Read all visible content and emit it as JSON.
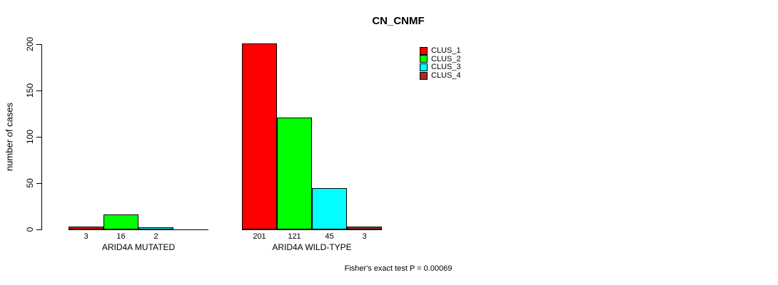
{
  "title": "CN_CNMF",
  "ylabel": "number of cases",
  "footer": "Fisher's exact test P = 0.00069",
  "chart_data": {
    "type": "bar",
    "title": "CN_CNMF",
    "xlabel": "",
    "ylabel": "number of cases",
    "ylim": [
      0,
      200
    ],
    "yticks": [
      0,
      50,
      100,
      150,
      200
    ],
    "grid": false,
    "legend_position": "top-right",
    "categories": [
      "ARID4A MUTATED",
      "ARID4A WILD-TYPE"
    ],
    "series": [
      {
        "name": "CLUS_1",
        "color": "#FF0000",
        "values": [
          3,
          201
        ]
      },
      {
        "name": "CLUS_2",
        "color": "#00FF00",
        "values": [
          16,
          121
        ]
      },
      {
        "name": "CLUS_3",
        "color": "#00FFFF",
        "values": [
          2,
          45
        ]
      },
      {
        "name": "CLUS_4",
        "color": "#A52A2A",
        "values": [
          0,
          3
        ]
      }
    ],
    "bar_value_labels_shown": [
      "3",
      "16",
      "2",
      "",
      "201",
      "121",
      "45",
      "3"
    ],
    "annotation": "Fisher's exact test P = 0.00069"
  }
}
